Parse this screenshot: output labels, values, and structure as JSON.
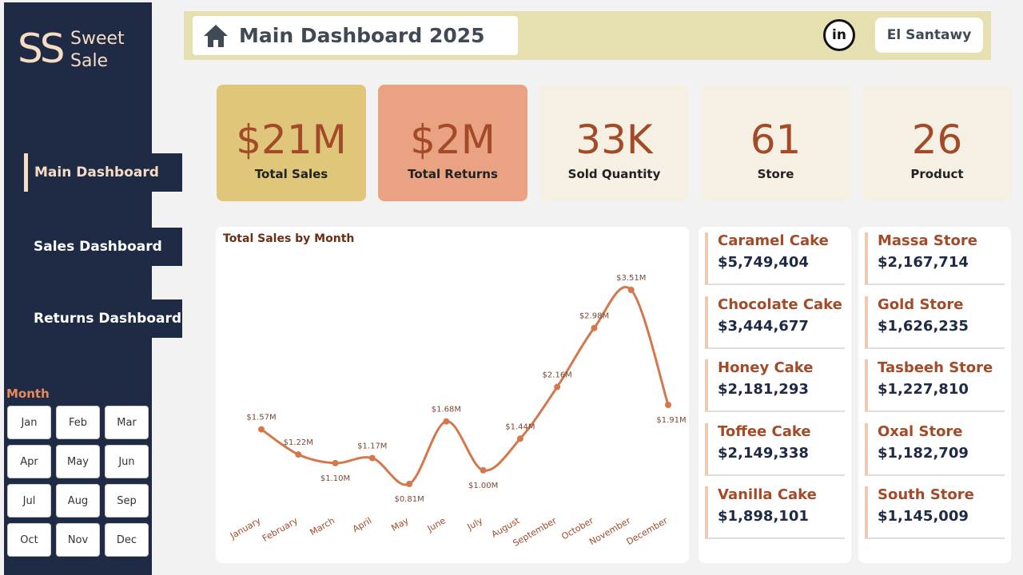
{
  "sidebar": {
    "logo_mark": "SS",
    "logo_text": [
      "Sweet",
      "Sale"
    ],
    "nav": [
      "Main Dashboard",
      "Sales Dashboard",
      "Returns Dashboard"
    ],
    "slicer_title": "Month",
    "months": [
      "Jan",
      "Feb",
      "Mar",
      "Apr",
      "May",
      "Jun",
      "Jul",
      "Aug",
      "Sep",
      "Oct",
      "Nov",
      "Dec"
    ]
  },
  "header": {
    "title": "Main Dashboard 2025",
    "linkedin": "in",
    "user": "El Santawy"
  },
  "kpis": [
    {
      "value": "$21M",
      "label": "Total Sales"
    },
    {
      "value": "$2M",
      "label": "Total Returns"
    },
    {
      "value": "33K",
      "label": "Sold Quantity"
    },
    {
      "value": "61",
      "label": "Store"
    },
    {
      "value": "26",
      "label": "Product"
    }
  ],
  "chart_data": {
    "type": "line",
    "title": "Total Sales by Month",
    "categories": [
      "January",
      "February",
      "March",
      "April",
      "May",
      "June",
      "July",
      "August",
      "September",
      "October",
      "November",
      "December"
    ],
    "values": [
      1.57,
      1.22,
      1.1,
      1.17,
      0.81,
      1.68,
      1.0,
      1.44,
      2.16,
      2.98,
      3.51,
      1.91
    ],
    "value_labels": [
      "$1.57M",
      "$1.22M",
      "$1.10M",
      "$1.17M",
      "$0.81M",
      "$1.68M",
      "$1.00M",
      "$1.44M",
      "$2.16M",
      "$2.98M",
      "$3.51M",
      "$1.91M"
    ],
    "color": "#d4784c"
  },
  "products": [
    {
      "name": "Caramel Cake",
      "value": "$5,749,404"
    },
    {
      "name": "Chocolate Cake",
      "value": "$3,444,677"
    },
    {
      "name": "Honey Cake",
      "value": "$2,181,293"
    },
    {
      "name": "Toffee Cake",
      "value": "$2,149,338"
    },
    {
      "name": "Vanilla Cake",
      "value": "$1,898,101"
    }
  ],
  "stores": [
    {
      "name": "Massa Store",
      "value": "$2,167,714"
    },
    {
      "name": "Gold Store",
      "value": "$1,626,235"
    },
    {
      "name": "Tasbeeh Store",
      "value": "$1,227,810"
    },
    {
      "name": "Oxal Store",
      "value": "$1,182,709"
    },
    {
      "name": "South Store",
      "value": "$1,145,009"
    }
  ]
}
